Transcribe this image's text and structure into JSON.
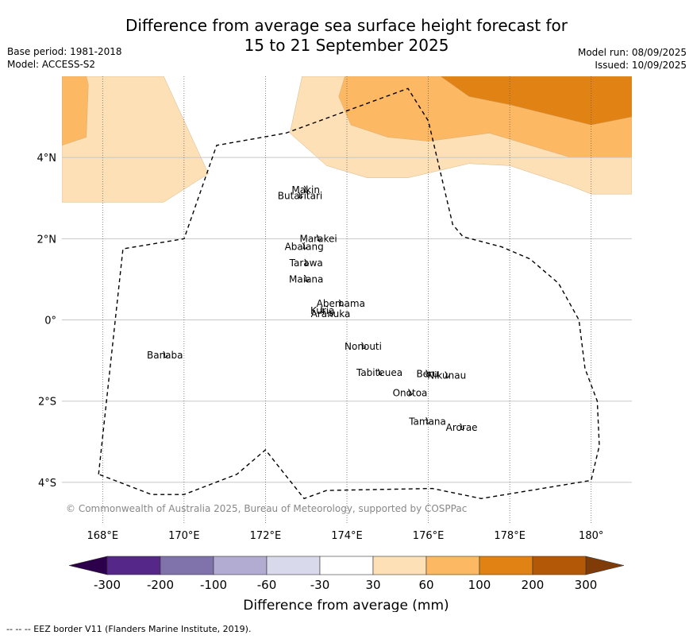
{
  "title": {
    "line1": "Difference from average sea surface height forecast for",
    "line2": "15 to 21 September 2025"
  },
  "meta_left": {
    "base_period": "Base period: 1981-2018",
    "model": "Model: ACCESS-S2"
  },
  "meta_right": {
    "model_run": "Model run: 08/09/2025",
    "issued": "Issued: 10/09/2025"
  },
  "map": {
    "lon_range": [
      167,
      181
    ],
    "lat_range": [
      -5,
      6
    ],
    "lon_ticks": [
      {
        "value": 168,
        "label": "168°E"
      },
      {
        "value": 170,
        "label": "170°E"
      },
      {
        "value": 172,
        "label": "172°E"
      },
      {
        "value": 174,
        "label": "174°E"
      },
      {
        "value": 176,
        "label": "176°E"
      },
      {
        "value": 178,
        "label": "178°E"
      },
      {
        "value": 180,
        "label": "180°"
      }
    ],
    "lat_ticks": [
      {
        "value": 4,
        "label": "4°N"
      },
      {
        "value": 2,
        "label": "2°N"
      },
      {
        "value": 0,
        "label": "0°"
      },
      {
        "value": -2,
        "label": "2°S"
      },
      {
        "value": -4,
        "label": "4°S"
      }
    ],
    "copyright": "© Commonwealth of Australia 2025, Bureau of Meteorology, supported by COSPPac",
    "islands": [
      {
        "name": "Makin",
        "lon": 172.99,
        "lat": 3.2
      },
      {
        "name": "Butaritari",
        "lon": 172.85,
        "lat": 3.05
      },
      {
        "name": "Marakei",
        "lon": 173.3,
        "lat": 2.0
      },
      {
        "name": "Abaiang",
        "lon": 172.95,
        "lat": 1.8
      },
      {
        "name": "Tarawa",
        "lon": 173.0,
        "lat": 1.4
      },
      {
        "name": "Maiana",
        "lon": 173.0,
        "lat": 1.0
      },
      {
        "name": "Abemama",
        "lon": 173.85,
        "lat": 0.4
      },
      {
        "name": "Kuria",
        "lon": 173.4,
        "lat": 0.23
      },
      {
        "name": "Aranuka",
        "lon": 173.6,
        "lat": 0.15
      },
      {
        "name": "Nonouti",
        "lon": 174.4,
        "lat": -0.65
      },
      {
        "name": "Banaba",
        "lon": 169.53,
        "lat": -0.87
      },
      {
        "name": "Beru",
        "lon": 175.98,
        "lat": -1.33
      },
      {
        "name": "Nikunau",
        "lon": 176.45,
        "lat": -1.37
      },
      {
        "name": "Tabiteuea",
        "lon": 174.8,
        "lat": -1.3
      },
      {
        "name": "Onotoa",
        "lon": 175.55,
        "lat": -1.8
      },
      {
        "name": "Tamana",
        "lon": 175.98,
        "lat": -2.5
      },
      {
        "name": "Arorae",
        "lon": 176.82,
        "lat": -2.65
      }
    ],
    "eez_border": [
      [
        167.9,
        -3.8
      ],
      [
        168.5,
        1.75
      ],
      [
        170.0,
        2.0
      ],
      [
        170.8,
        4.3
      ],
      [
        172.5,
        4.6
      ],
      [
        175.5,
        5.7
      ],
      [
        176.0,
        4.9
      ],
      [
        176.6,
        2.35
      ],
      [
        176.85,
        2.05
      ],
      [
        177.8,
        1.8
      ],
      [
        178.5,
        1.5
      ],
      [
        179.2,
        0.9
      ],
      [
        179.7,
        0.0
      ],
      [
        179.85,
        -1.2
      ],
      [
        180.15,
        -2.0
      ],
      [
        180.2,
        -3.1
      ],
      [
        180.0,
        -3.95
      ],
      [
        177.3,
        -4.4
      ],
      [
        176.1,
        -4.15
      ],
      [
        173.5,
        -4.2
      ],
      [
        172.95,
        -4.4
      ],
      [
        172.0,
        -3.2
      ],
      [
        171.3,
        -3.8
      ],
      [
        170.0,
        -4.3
      ],
      [
        169.2,
        -4.3
      ],
      [
        167.9,
        -3.8
      ]
    ],
    "fields": [
      {
        "level": "30 to 60",
        "color": "#fee0b6",
        "polygon": [
          [
            167.0,
            2.9
          ],
          [
            168.0,
            2.9
          ],
          [
            169.5,
            2.9
          ],
          [
            170.6,
            3.6
          ],
          [
            169.5,
            6.0
          ],
          [
            167.0,
            6.0
          ]
        ]
      },
      {
        "level": "60 to 100",
        "color": "#fdb863",
        "polygon": [
          [
            167.0,
            4.3
          ],
          [
            167.6,
            4.5
          ],
          [
            167.65,
            5.8
          ],
          [
            167.6,
            6.0
          ],
          [
            167.0,
            6.0
          ]
        ]
      },
      {
        "level": "30 to 60",
        "color": "#fee0b6",
        "polygon": [
          [
            172.6,
            4.6
          ],
          [
            173.5,
            3.8
          ],
          [
            174.5,
            3.5
          ],
          [
            175.5,
            3.5
          ],
          [
            177.0,
            3.85
          ],
          [
            178.0,
            3.8
          ],
          [
            179.5,
            3.3
          ],
          [
            180.0,
            3.1
          ],
          [
            181.0,
            3.1
          ],
          [
            181.0,
            6.0
          ],
          [
            172.9,
            6.0
          ]
        ]
      },
      {
        "level": "60 to 100",
        "color": "#fdb863",
        "polygon": [
          [
            173.8,
            5.5
          ],
          [
            174.1,
            4.8
          ],
          [
            175.0,
            4.5
          ],
          [
            176.0,
            4.4
          ],
          [
            177.5,
            4.6
          ],
          [
            179.5,
            4.0
          ],
          [
            181.0,
            4.0
          ],
          [
            181.0,
            6.0
          ],
          [
            173.95,
            6.0
          ]
        ]
      },
      {
        "level": "100 to 200",
        "color": "#e08214",
        "polygon": [
          [
            176.3,
            6.0
          ],
          [
            177.0,
            5.5
          ],
          [
            178.0,
            5.3
          ],
          [
            180.0,
            4.8
          ],
          [
            181.0,
            5.0
          ],
          [
            181.0,
            6.0
          ]
        ]
      }
    ]
  },
  "colorbar": {
    "segments": [
      {
        "color": "#2d004b",
        "range": "< -300"
      },
      {
        "color": "#542788",
        "range": "-300 to -200"
      },
      {
        "color": "#8073ac",
        "range": "-200 to -100"
      },
      {
        "color": "#b2abd2",
        "range": "-100 to -60"
      },
      {
        "color": "#d8daeb",
        "range": "-60 to -30"
      },
      {
        "color": "#ffffff",
        "range": "-30 to 30"
      },
      {
        "color": "#fee0b6",
        "range": "30 to 60"
      },
      {
        "color": "#fdb863",
        "range": "60 to 100"
      },
      {
        "color": "#e08214",
        "range": "100 to 200"
      },
      {
        "color": "#b35806",
        "range": "200 to 300"
      },
      {
        "color": "#7f3b08",
        "range": "> 300"
      }
    ],
    "tick_labels": [
      "-300",
      "-200",
      "-100",
      "-60",
      "-30",
      "30",
      "60",
      "100",
      "200",
      "300"
    ],
    "label": "Difference from average (mm)"
  },
  "footer": "--  --  -- EEZ border V11 (Flanders Marine Institute, 2019)."
}
